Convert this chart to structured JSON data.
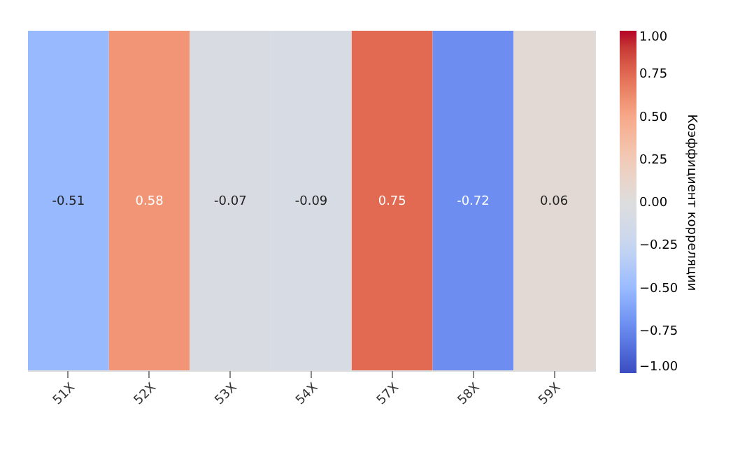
{
  "chart_data": {
    "type": "heatmap",
    "categories": [
      "51X",
      "52X",
      "53X",
      "54X",
      "57X",
      "58X",
      "59X"
    ],
    "y_categories": [
      null
    ],
    "cells": [
      [
        -0.51,
        0.58,
        -0.07,
        -0.09,
        0.75,
        -0.72,
        0.06
      ]
    ],
    "data_labels": true,
    "clabel": "Коэффициент корреляции",
    "clim": [
      -1.0,
      1.0
    ],
    "cticks": [
      {
        "value": 1.0,
        "label": "1.00"
      },
      {
        "value": 0.75,
        "label": "0.75"
      },
      {
        "value": 0.5,
        "label": "0.50"
      },
      {
        "value": 0.25,
        "label": "0.25"
      },
      {
        "value": 0.0,
        "label": "0.00"
      },
      {
        "value": -0.25,
        "label": "−0.25"
      },
      {
        "value": -0.5,
        "label": "−0.50"
      },
      {
        "value": -0.75,
        "label": "−0.75"
      },
      {
        "value": -1.0,
        "label": "−1.00"
      }
    ]
  }
}
